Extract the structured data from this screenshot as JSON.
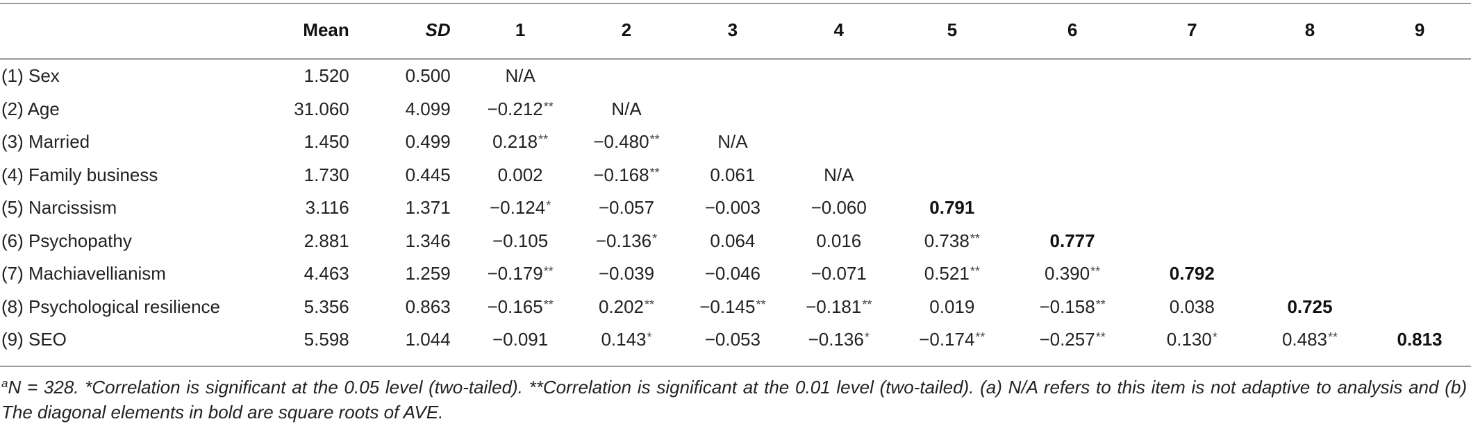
{
  "table": {
    "headers": [
      "Mean",
      "SD",
      "1",
      "2",
      "3",
      "4",
      "5",
      "6",
      "7",
      "8",
      "9"
    ],
    "rows": [
      {
        "label": "(1) Sex",
        "mean": "1.520",
        "sd": "0.500",
        "cells": [
          {
            "v": "N/A",
            "s": ""
          }
        ]
      },
      {
        "label": "(2) Age",
        "mean": "31.060",
        "sd": "4.099",
        "cells": [
          {
            "v": "−0.212",
            "s": "**"
          },
          {
            "v": "N/A",
            "s": ""
          }
        ]
      },
      {
        "label": "(3) Married",
        "mean": "1.450",
        "sd": "0.499",
        "cells": [
          {
            "v": "0.218",
            "s": "**"
          },
          {
            "v": "−0.480",
            "s": "**"
          },
          {
            "v": "N/A",
            "s": ""
          }
        ]
      },
      {
        "label": "(4) Family business",
        "mean": "1.730",
        "sd": "0.445",
        "cells": [
          {
            "v": "0.002",
            "s": ""
          },
          {
            "v": "−0.168",
            "s": "**"
          },
          {
            "v": "0.061",
            "s": ""
          },
          {
            "v": "N/A",
            "s": ""
          }
        ]
      },
      {
        "label": "(5) Narcissism",
        "mean": "3.116",
        "sd": "1.371",
        "cells": [
          {
            "v": "−0.124",
            "s": "*"
          },
          {
            "v": "−0.057",
            "s": ""
          },
          {
            "v": "−0.003",
            "s": ""
          },
          {
            "v": "−0.060",
            "s": ""
          },
          {
            "v": "0.791",
            "s": "",
            "bold": true
          }
        ]
      },
      {
        "label": "(6) Psychopathy",
        "mean": "2.881",
        "sd": "1.346",
        "cells": [
          {
            "v": "−0.105",
            "s": ""
          },
          {
            "v": "−0.136",
            "s": "*"
          },
          {
            "v": "0.064",
            "s": ""
          },
          {
            "v": "0.016",
            "s": ""
          },
          {
            "v": "0.738",
            "s": "**"
          },
          {
            "v": "0.777",
            "s": "",
            "bold": true
          }
        ]
      },
      {
        "label": "(7) Machiavellianism",
        "mean": "4.463",
        "sd": "1.259",
        "cells": [
          {
            "v": "−0.179",
            "s": "**"
          },
          {
            "v": "−0.039",
            "s": ""
          },
          {
            "v": "−0.046",
            "s": ""
          },
          {
            "v": "−0.071",
            "s": ""
          },
          {
            "v": "0.521",
            "s": "**"
          },
          {
            "v": "0.390",
            "s": "**"
          },
          {
            "v": "0.792",
            "s": "",
            "bold": true
          }
        ]
      },
      {
        "label": "(8) Psychological resilience",
        "mean": "5.356",
        "sd": "0.863",
        "cells": [
          {
            "v": "−0.165",
            "s": "**"
          },
          {
            "v": "0.202",
            "s": "**"
          },
          {
            "v": "−0.145",
            "s": "**"
          },
          {
            "v": "−0.181",
            "s": "**"
          },
          {
            "v": "0.019",
            "s": ""
          },
          {
            "v": "−0.158",
            "s": "**"
          },
          {
            "v": "0.038",
            "s": ""
          },
          {
            "v": "0.725",
            "s": "",
            "bold": true
          }
        ]
      },
      {
        "label": "(9) SEO",
        "mean": "5.598",
        "sd": "1.044",
        "cells": [
          {
            "v": "−0.091",
            "s": ""
          },
          {
            "v": "0.143",
            "s": "*"
          },
          {
            "v": "−0.053",
            "s": ""
          },
          {
            "v": "−0.136",
            "s": "*"
          },
          {
            "v": "−0.174",
            "s": "**"
          },
          {
            "v": "−0.257",
            "s": "**"
          },
          {
            "v": "0.130",
            "s": "*"
          },
          {
            "v": "0.483",
            "s": "**"
          },
          {
            "v": "0.813",
            "s": "",
            "bold": true
          }
        ]
      }
    ]
  },
  "note": {
    "superscript": "a",
    "text": "N = 328. *Correlation is significant at the 0.05 level (two-tailed). **Correlation is significant at the 0.01 level (two-tailed). (a) N/A refers to this item is not adaptive to analysis and (b) The diagonal elements in bold are square roots of AVE."
  }
}
